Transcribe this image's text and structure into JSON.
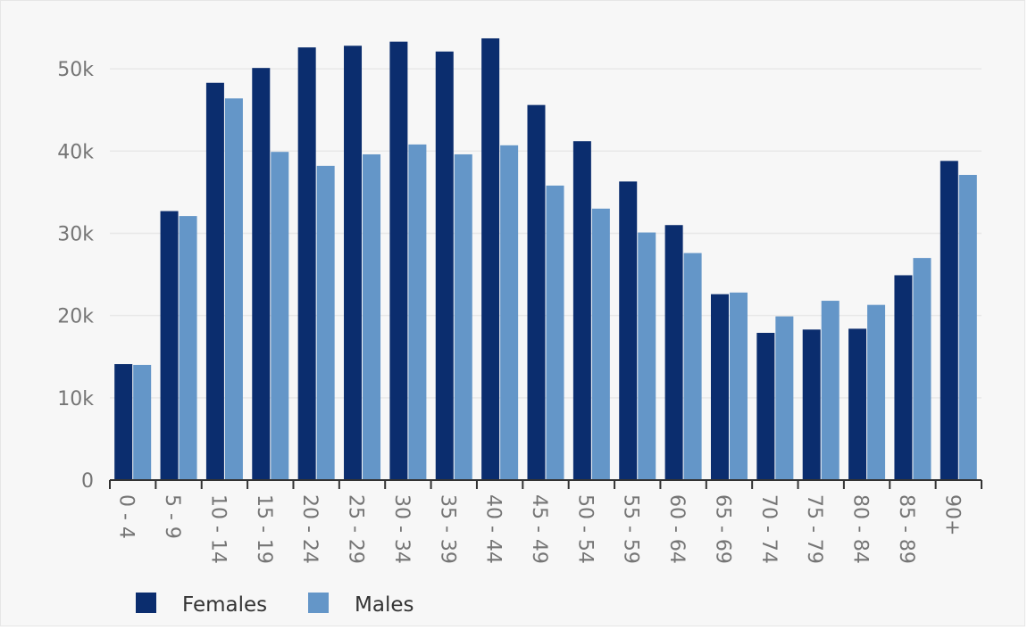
{
  "chart_data": {
    "type": "bar",
    "categories": [
      "0 - 4",
      "5 - 9",
      "10 - 14",
      "15 - 19",
      "20 - 24",
      "25 - 29",
      "30 - 34",
      "35 - 39",
      "40 - 44",
      "45 - 49",
      "50 - 54",
      "55 - 59",
      "60 - 64",
      "65 - 69",
      "70 - 74",
      "75 - 79",
      "80 - 84",
      "85 - 89",
      "90+"
    ],
    "series": [
      {
        "name": "Females",
        "color": "#0b2d6e",
        "values": [
          14100,
          32700,
          48300,
          50100,
          52600,
          52800,
          53300,
          52100,
          53700,
          45600,
          41200,
          36300,
          31000,
          22600,
          17900,
          18300,
          18400,
          24900,
          38800
        ]
      },
      {
        "name": "Males",
        "color": "#6496c8",
        "values": [
          14000,
          32100,
          46400,
          39900,
          38200,
          39600,
          40800,
          39600,
          40700,
          35800,
          33000,
          30100,
          27600,
          22800,
          19900,
          21800,
          21300,
          27000,
          37100
        ]
      }
    ],
    "yticks": [
      0,
      10000,
      20000,
      30000,
      40000,
      50000
    ],
    "ytick_labels": [
      "0",
      "10k",
      "20k",
      "30k",
      "40k",
      "50k"
    ],
    "ylim": [
      0,
      55000
    ],
    "grid": true,
    "legend_placement": "bottom-left",
    "title": "",
    "xlabel": "",
    "ylabel": ""
  }
}
